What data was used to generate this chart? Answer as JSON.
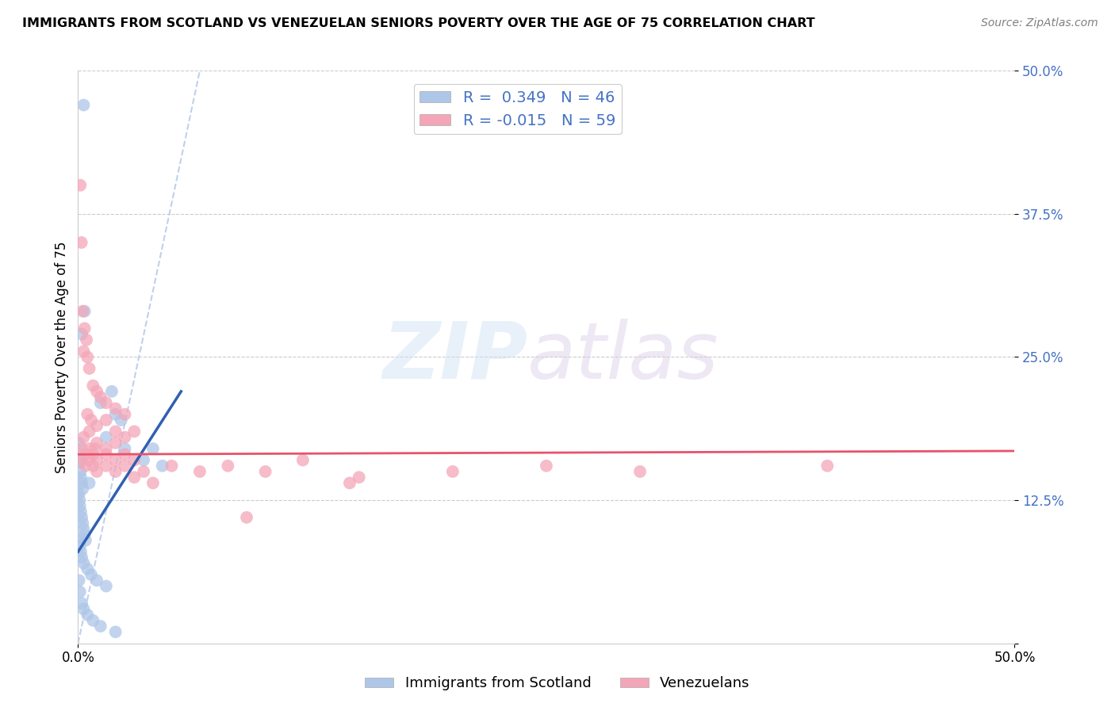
{
  "title": "IMMIGRANTS FROM SCOTLAND VS VENEZUELAN SENIORS POVERTY OVER THE AGE OF 75 CORRELATION CHART",
  "source": "Source: ZipAtlas.com",
  "ylabel": "Seniors Poverty Over the Age of 75",
  "xlim": [
    0,
    50
  ],
  "ylim": [
    0,
    50
  ],
  "scotland_color": "#aec6e8",
  "venezuela_color": "#f4a6b8",
  "scotland_line_color": "#3060b0",
  "venezuela_line_color": "#e8526a",
  "scotland_points": [
    [
      0.3,
      47.0
    ],
    [
      0.35,
      29.0
    ],
    [
      1.8,
      22.0
    ],
    [
      2.0,
      20.0
    ],
    [
      2.3,
      19.5
    ],
    [
      1.5,
      18.0
    ],
    [
      2.5,
      17.0
    ],
    [
      1.2,
      21.0
    ],
    [
      0.2,
      27.0
    ],
    [
      3.5,
      16.0
    ],
    [
      4.0,
      17.0
    ],
    [
      4.5,
      15.5
    ],
    [
      0.05,
      17.5
    ],
    [
      0.08,
      16.5
    ],
    [
      0.1,
      15.8
    ],
    [
      0.12,
      15.0
    ],
    [
      0.15,
      14.5
    ],
    [
      0.2,
      14.0
    ],
    [
      0.25,
      13.5
    ],
    [
      0.05,
      13.0
    ],
    [
      0.08,
      12.5
    ],
    [
      0.1,
      12.0
    ],
    [
      0.15,
      11.5
    ],
    [
      0.2,
      11.0
    ],
    [
      0.25,
      10.5
    ],
    [
      0.3,
      10.0
    ],
    [
      0.35,
      9.5
    ],
    [
      0.4,
      9.0
    ],
    [
      0.05,
      9.0
    ],
    [
      0.1,
      8.5
    ],
    [
      0.15,
      8.0
    ],
    [
      0.2,
      7.5
    ],
    [
      0.3,
      7.0
    ],
    [
      0.5,
      6.5
    ],
    [
      0.7,
      6.0
    ],
    [
      1.0,
      5.5
    ],
    [
      1.5,
      5.0
    ],
    [
      0.05,
      5.5
    ],
    [
      0.1,
      4.5
    ],
    [
      0.2,
      3.5
    ],
    [
      0.3,
      3.0
    ],
    [
      0.5,
      2.5
    ],
    [
      0.8,
      2.0
    ],
    [
      1.2,
      1.5
    ],
    [
      2.0,
      1.0
    ],
    [
      0.6,
      14.0
    ]
  ],
  "venezuela_points": [
    [
      0.12,
      40.0
    ],
    [
      0.18,
      35.0
    ],
    [
      0.25,
      29.0
    ],
    [
      0.35,
      27.5
    ],
    [
      0.45,
      26.5
    ],
    [
      0.3,
      25.5
    ],
    [
      0.5,
      25.0
    ],
    [
      0.6,
      24.0
    ],
    [
      0.8,
      22.5
    ],
    [
      1.0,
      22.0
    ],
    [
      1.2,
      21.5
    ],
    [
      1.5,
      21.0
    ],
    [
      2.0,
      20.5
    ],
    [
      2.5,
      20.0
    ],
    [
      0.5,
      20.0
    ],
    [
      0.7,
      19.5
    ],
    [
      1.0,
      19.0
    ],
    [
      1.5,
      19.5
    ],
    [
      2.0,
      18.5
    ],
    [
      2.5,
      18.0
    ],
    [
      3.0,
      18.5
    ],
    [
      0.3,
      18.0
    ],
    [
      0.6,
      18.5
    ],
    [
      1.0,
      17.5
    ],
    [
      1.5,
      17.0
    ],
    [
      2.0,
      17.5
    ],
    [
      0.2,
      17.0
    ],
    [
      0.4,
      16.5
    ],
    [
      0.6,
      17.0
    ],
    [
      0.8,
      16.5
    ],
    [
      1.0,
      16.0
    ],
    [
      1.5,
      16.5
    ],
    [
      2.0,
      16.0
    ],
    [
      2.5,
      16.5
    ],
    [
      3.0,
      16.0
    ],
    [
      0.2,
      16.0
    ],
    [
      0.4,
      15.5
    ],
    [
      0.6,
      16.0
    ],
    [
      0.8,
      15.5
    ],
    [
      1.0,
      15.0
    ],
    [
      1.5,
      15.5
    ],
    [
      2.0,
      15.0
    ],
    [
      2.5,
      15.5
    ],
    [
      3.5,
      15.0
    ],
    [
      5.0,
      15.5
    ],
    [
      6.5,
      15.0
    ],
    [
      8.0,
      15.5
    ],
    [
      10.0,
      15.0
    ],
    [
      12.0,
      16.0
    ],
    [
      15.0,
      14.5
    ],
    [
      20.0,
      15.0
    ],
    [
      25.0,
      15.5
    ],
    [
      30.0,
      15.0
    ],
    [
      40.0,
      15.5
    ],
    [
      3.0,
      14.5
    ],
    [
      4.0,
      14.0
    ],
    [
      14.5,
      14.0
    ],
    [
      9.0,
      11.0
    ],
    [
      0.9,
      17.0
    ]
  ],
  "scotland_line": {
    "x0": 0,
    "y0": 8.0,
    "x1": 5.5,
    "y1": 22.0
  },
  "venezuela_line": {
    "x0": 0,
    "y0": 16.5,
    "x1": 50,
    "y1": 16.8
  },
  "diag_line": {
    "x0": 0,
    "y0": 0,
    "x1": 6.5,
    "y1": 50
  }
}
